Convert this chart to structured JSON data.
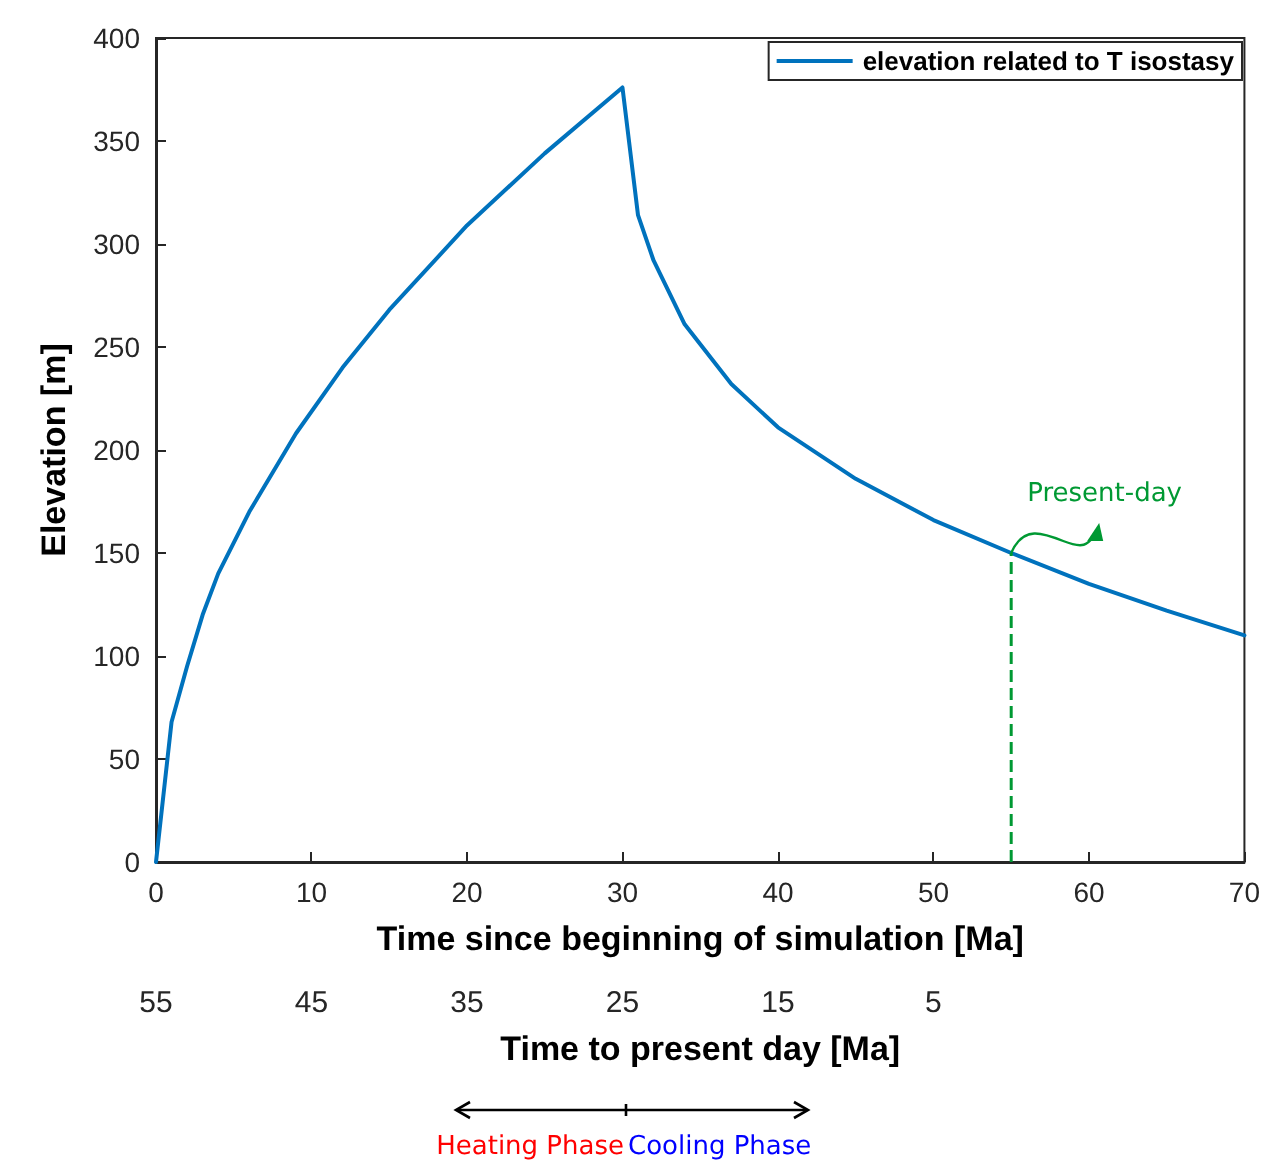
{
  "chart_data": {
    "type": "line",
    "xlabel": "Time since beginning of simulation [Ma]",
    "ylabel": "Elevation [m]",
    "x2label": "Time to present day [Ma]",
    "x": [
      0,
      1,
      2,
      3,
      4,
      6,
      9,
      12,
      15,
      20,
      25,
      30,
      31,
      32,
      34,
      37,
      40,
      45,
      50,
      55,
      60,
      65,
      70
    ],
    "series": [
      {
        "name": "elevation related to T isostasy",
        "color": "#0072bd",
        "values": [
          0,
          68,
          95,
          120,
          140,
          170,
          208,
          240,
          268,
          309,
          344,
          376,
          314,
          292,
          261,
          232,
          211,
          186,
          166,
          150,
          135,
          122,
          110
        ]
      }
    ],
    "xlim": [
      0,
      70
    ],
    "xticks": [
      0,
      10,
      20,
      30,
      40,
      50,
      60,
      70
    ],
    "ylim": [
      0,
      400
    ],
    "yticks": [
      0,
      50,
      100,
      150,
      200,
      250,
      300,
      350,
      400
    ],
    "x2lim": [
      55,
      -15
    ],
    "x2ticks": [
      55,
      45,
      35,
      25,
      15,
      5
    ],
    "ref_lines": [
      {
        "axis": "x",
        "value": 55,
        "label": "Present-day",
        "color": "#009933",
        "line_style": "dashed"
      }
    ],
    "annotations": [
      "Heating Phase",
      "Cooling Phase"
    ],
    "legend": "top right",
    "grid": false,
    "marker": "none",
    "line_style": "solid"
  }
}
